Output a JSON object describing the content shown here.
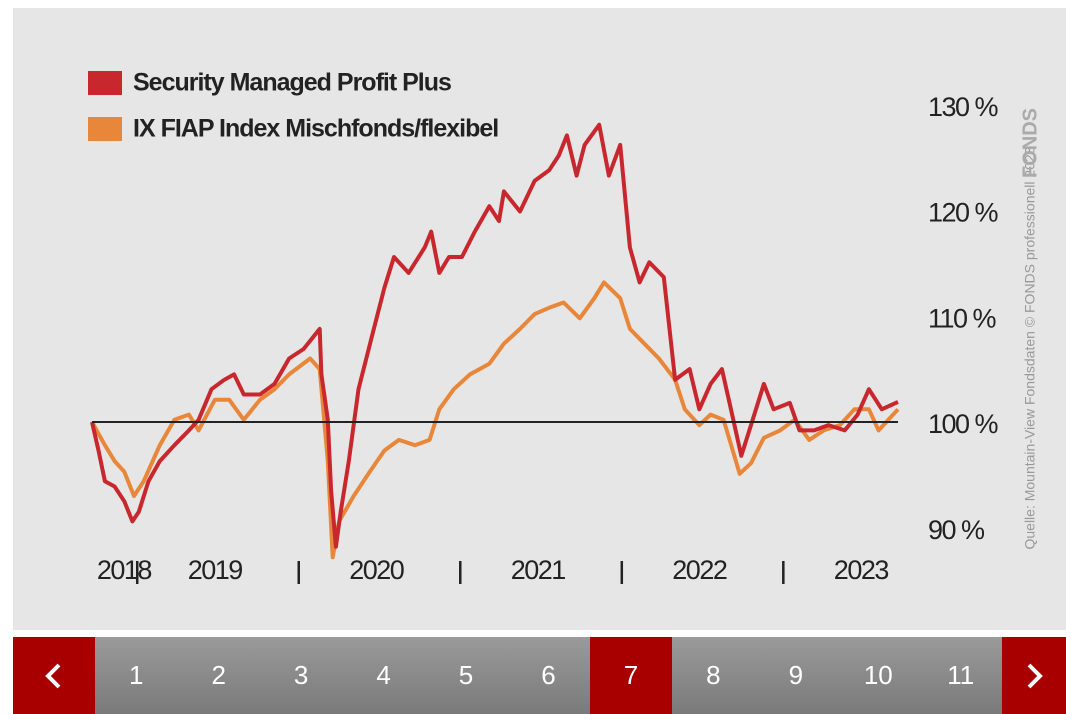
{
  "chart_data": {
    "type": "line",
    "series": [
      {
        "name": "Security Managed Profit Plus",
        "color": "#c8282d",
        "x": [
          2018.72,
          2018.76,
          2018.8,
          2018.86,
          2018.92,
          2018.97,
          2019.01,
          2019.07,
          2019.14,
          2019.23,
          2019.32,
          2019.38,
          2019.46,
          2019.54,
          2019.6,
          2019.66,
          2019.76,
          2019.85,
          2019.94,
          2020.03,
          2020.13,
          2020.14,
          2020.18,
          2020.2,
          2020.23,
          2020.26,
          2020.31,
          2020.37,
          2020.45,
          2020.53,
          2020.59,
          2020.68,
          2020.78,
          2020.82,
          2020.87,
          2020.93,
          2021.01,
          2021.09,
          2021.18,
          2021.24,
          2021.27,
          2021.37,
          2021.46,
          2021.55,
          2021.61,
          2021.66,
          2021.72,
          2021.77,
          2021.86,
          2021.92,
          2021.99,
          2022.05,
          2022.11,
          2022.17,
          2022.26,
          2022.33,
          2022.42,
          2022.48,
          2022.55,
          2022.62,
          2022.67,
          2022.74,
          2022.8,
          2022.88,
          2022.94,
          2023.04,
          2023.1,
          2023.19,
          2023.28,
          2023.38,
          2023.46,
          2023.53,
          2023.61,
          2023.71
        ],
        "values": [
          100,
          97.3,
          94.4,
          93.9,
          92.5,
          90.6,
          91.5,
          94.4,
          96.3,
          97.8,
          99.2,
          100.2,
          103.1,
          104,
          104.5,
          102.6,
          102.6,
          103.6,
          106,
          106.9,
          108.8,
          104.5,
          100.2,
          93.5,
          88.2,
          91.5,
          96.3,
          103.1,
          107.9,
          112.7,
          115.6,
          114.1,
          116.5,
          118,
          114.1,
          115.6,
          115.6,
          118,
          120.4,
          119,
          121.8,
          119.9,
          122.8,
          123.8,
          125.2,
          127.1,
          123.3,
          126.2,
          128.1,
          123.3,
          126.2,
          116.5,
          113.2,
          115.1,
          113.7,
          104,
          105,
          101.2,
          103.6,
          105,
          101.6,
          96.8,
          99.7,
          103.6,
          101.2,
          101.8,
          99.2,
          99.2,
          99.7,
          99.2,
          100.7,
          103.1,
          101.2,
          101.9
        ]
      },
      {
        "name": "IX FIAP Index Mischfonds/flexibel",
        "color": "#e8873a",
        "x": [
          2018.72,
          2018.8,
          2018.86,
          2018.92,
          2018.98,
          2019.04,
          2019.14,
          2019.23,
          2019.32,
          2019.38,
          2019.48,
          2019.57,
          2019.66,
          2019.76,
          2019.85,
          2019.94,
          2020.07,
          2020.13,
          2020.18,
          2020.21,
          2020.25,
          2020.34,
          2020.44,
          2020.53,
          2020.62,
          2020.72,
          2020.81,
          2020.87,
          2020.96,
          2021.06,
          2021.18,
          2021.27,
          2021.37,
          2021.46,
          2021.55,
          2021.64,
          2021.74,
          2021.83,
          2021.89,
          2021.99,
          2022.05,
          2022.14,
          2022.23,
          2022.33,
          2022.39,
          2022.48,
          2022.55,
          2022.63,
          2022.73,
          2022.8,
          2022.88,
          2022.98,
          2023.07,
          2023.16,
          2023.25,
          2023.35,
          2023.44,
          2023.53,
          2023.59,
          2023.71
        ],
        "values": [
          100,
          97.8,
          96.3,
          95.3,
          93,
          94.4,
          97.8,
          100.2,
          100.7,
          99.2,
          102.1,
          102.1,
          100.2,
          102.1,
          103.1,
          104.5,
          106,
          105,
          96.3,
          87.2,
          90.6,
          93,
          95.3,
          97.3,
          98.3,
          97.8,
          98.3,
          101.2,
          103.1,
          104.5,
          105.5,
          107.4,
          108.8,
          110.2,
          110.8,
          111.3,
          109.8,
          111.7,
          113.2,
          111.7,
          108.8,
          107.4,
          106,
          104,
          101.2,
          99.7,
          100.7,
          100.2,
          95.1,
          96.1,
          98.5,
          99.2,
          100.2,
          98.3,
          99.2,
          99.7,
          101.2,
          101.2,
          99.2,
          101.2
        ]
      }
    ],
    "xlim": [
      2018.72,
      2023.71
    ],
    "xticks": [
      {
        "value": 2018.75,
        "label": "2018"
      },
      {
        "value": 2019.48,
        "label": "2019"
      },
      {
        "value": 2020.48,
        "label": "2020"
      },
      {
        "value": 2021.48,
        "label": "2021"
      },
      {
        "value": 2022.48,
        "label": "2022"
      },
      {
        "value": 2023.48,
        "label": "2023"
      }
    ],
    "year_separators": [
      2019,
      2020,
      2021,
      2022,
      2023
    ],
    "ylim": [
      86,
      133
    ],
    "yticks": [
      {
        "value": 90,
        "label": "90 %"
      },
      {
        "value": 100,
        "label": "100 %"
      },
      {
        "value": 110,
        "label": "110 %"
      },
      {
        "value": 120,
        "label": "120 %"
      },
      {
        "value": 130,
        "label": "130 %"
      }
    ],
    "baseline": 100,
    "legend": "upper left",
    "source": "Quelle: Mountain-View Fondsdaten  © FONDS professionell 2023",
    "logo": "FONDS"
  },
  "pagination": {
    "pages": [
      1,
      2,
      3,
      4,
      5,
      6,
      7,
      8,
      9,
      10,
      11
    ],
    "current": 7
  }
}
